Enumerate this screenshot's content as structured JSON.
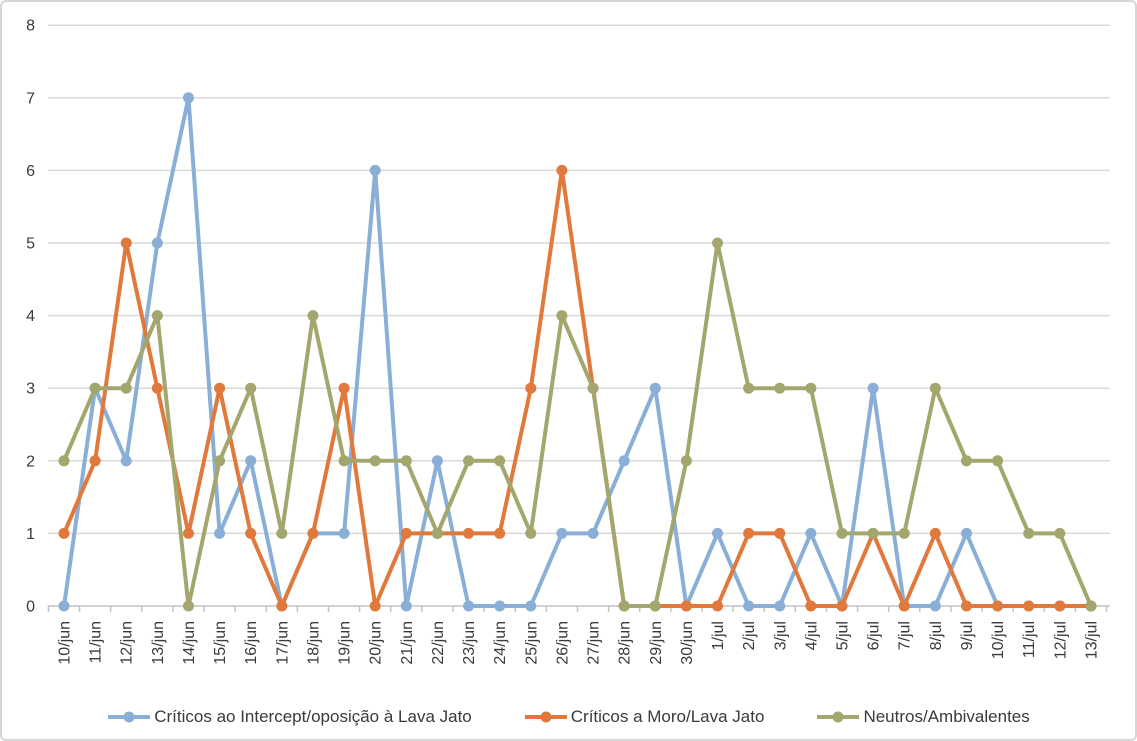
{
  "chart_data": {
    "type": "line",
    "title": "",
    "xlabel": "",
    "ylabel": "",
    "grid": "horizontal",
    "legend_position": "bottom",
    "ylim": [
      0,
      8
    ],
    "y_tick_step": 1,
    "y_tick_labels": [
      "0",
      "1",
      "2",
      "3",
      "4",
      "5",
      "6",
      "7",
      "8"
    ],
    "categories": [
      "10/jun",
      "11/jun",
      "12/jun",
      "13/jun",
      "14/jun",
      "15/jun",
      "16/jun",
      "17/jun",
      "18/jun",
      "19/jun",
      "20/jun",
      "21/jun",
      "22/jun",
      "23/jun",
      "24/jun",
      "25/jun",
      "26/jun",
      "27/jun",
      "28/jun",
      "29/jun",
      "30/jun",
      "1/jul",
      "2/jul",
      "3/jul",
      "4/jul",
      "5/jul",
      "6/jul",
      "7/jul",
      "8/jul",
      "9/jul",
      "10/jul",
      "11/jul",
      "12/jul",
      "13/jul"
    ],
    "series": [
      {
        "name": "Críticos ao Intercept/oposição à Lava Jato",
        "color": "#8aafd6",
        "values": [
          0,
          3,
          2,
          5,
          7,
          1,
          2,
          0,
          1,
          1,
          6,
          0,
          2,
          0,
          0,
          0,
          1,
          1,
          2,
          3,
          0,
          1,
          0,
          0,
          1,
          0,
          3,
          0,
          0,
          1,
          0,
          0,
          0,
          0
        ]
      },
      {
        "name": "Críticos a Moro/Lava Jato",
        "color": "#e0793b",
        "values": [
          1,
          2,
          5,
          3,
          1,
          3,
          1,
          0,
          1,
          3,
          0,
          1,
          1,
          1,
          1,
          3,
          6,
          3,
          0,
          0,
          0,
          0,
          1,
          1,
          0,
          0,
          1,
          0,
          1,
          0,
          0,
          0,
          0,
          0
        ]
      },
      {
        "name": "Neutros/Ambivalentes",
        "color": "#a3a76d",
        "values": [
          2,
          3,
          3,
          4,
          0,
          2,
          3,
          1,
          4,
          2,
          2,
          2,
          1,
          2,
          2,
          1,
          4,
          3,
          0,
          0,
          2,
          5,
          3,
          3,
          3,
          1,
          1,
          1,
          3,
          2,
          2,
          1,
          1,
          0
        ]
      }
    ]
  },
  "colors": {
    "gridline": "#d9d9d9",
    "axis": "#c3c3c3",
    "tick": "#c3c3c3",
    "label_text": "#3a3a3a",
    "background": "#ffffff",
    "border": "#d6d6d6"
  }
}
